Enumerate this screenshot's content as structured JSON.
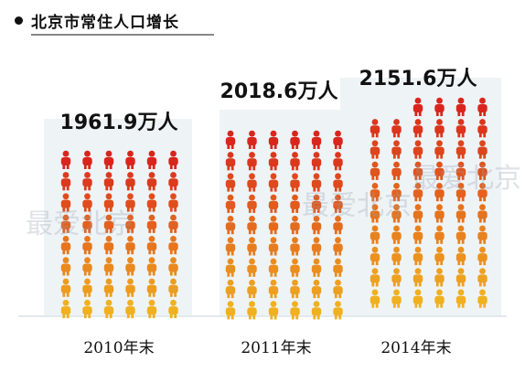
{
  "header": {
    "title": "北京市常住人口增长"
  },
  "watermark": "最爱北京",
  "chart_data": {
    "type": "bar",
    "title": "北京市常住人口增长",
    "categories": [
      "2010年末",
      "2011年末",
      "2014年末"
    ],
    "values": [
      1961.9,
      2018.6,
      2151.6
    ],
    "value_labels": [
      "1961.9万人",
      "2018.6万人",
      "2151.6万人"
    ],
    "unit": "万人",
    "icon_grid": [
      {
        "rows": 8,
        "cols": 6
      },
      {
        "rows": 9,
        "cols": 6
      },
      {
        "rows": 10,
        "cols": 6,
        "top_row_cols": 4
      }
    ],
    "colors": {
      "top": "#d8261c",
      "bottom": "#f0b020",
      "panel": "#eef3f6",
      "label": "#111111"
    }
  }
}
